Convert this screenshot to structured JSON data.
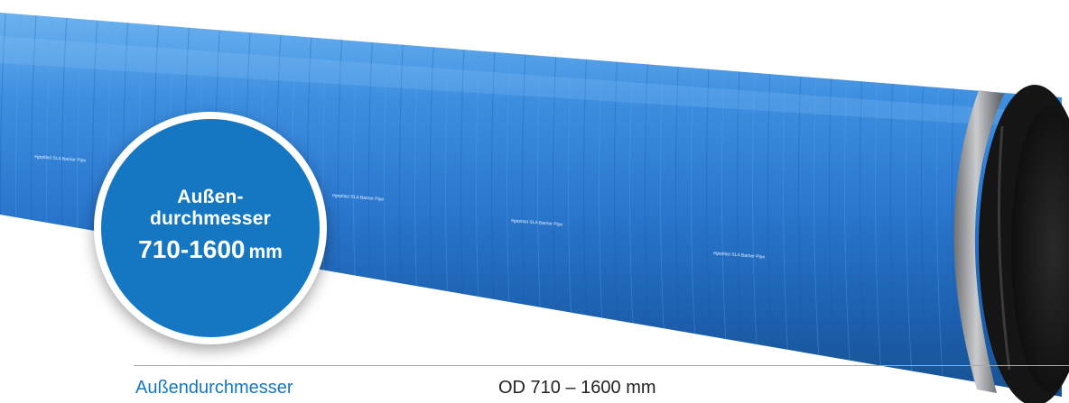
{
  "badge": {
    "line1": "Außen-",
    "line2": "durchmesser",
    "range": "710-1600",
    "unit": "mm"
  },
  "pipe": {
    "print_1": "egeplast SLA Barrier Pipe",
    "print_2": "egeplast SLA Barrier Pipe",
    "print_3": "egeplast SLA Barrier Pipe",
    "print_4": "egeplast SLA Barrier Pipe"
  },
  "spec": {
    "label": "Außendurchmesser",
    "value": "OD 710 – 1600 mm"
  },
  "colors": {
    "pipe_blue": "#2e7fd6",
    "badge_blue": "#1577c2",
    "label_blue": "#1577c2",
    "seal_black": "#151515"
  }
}
